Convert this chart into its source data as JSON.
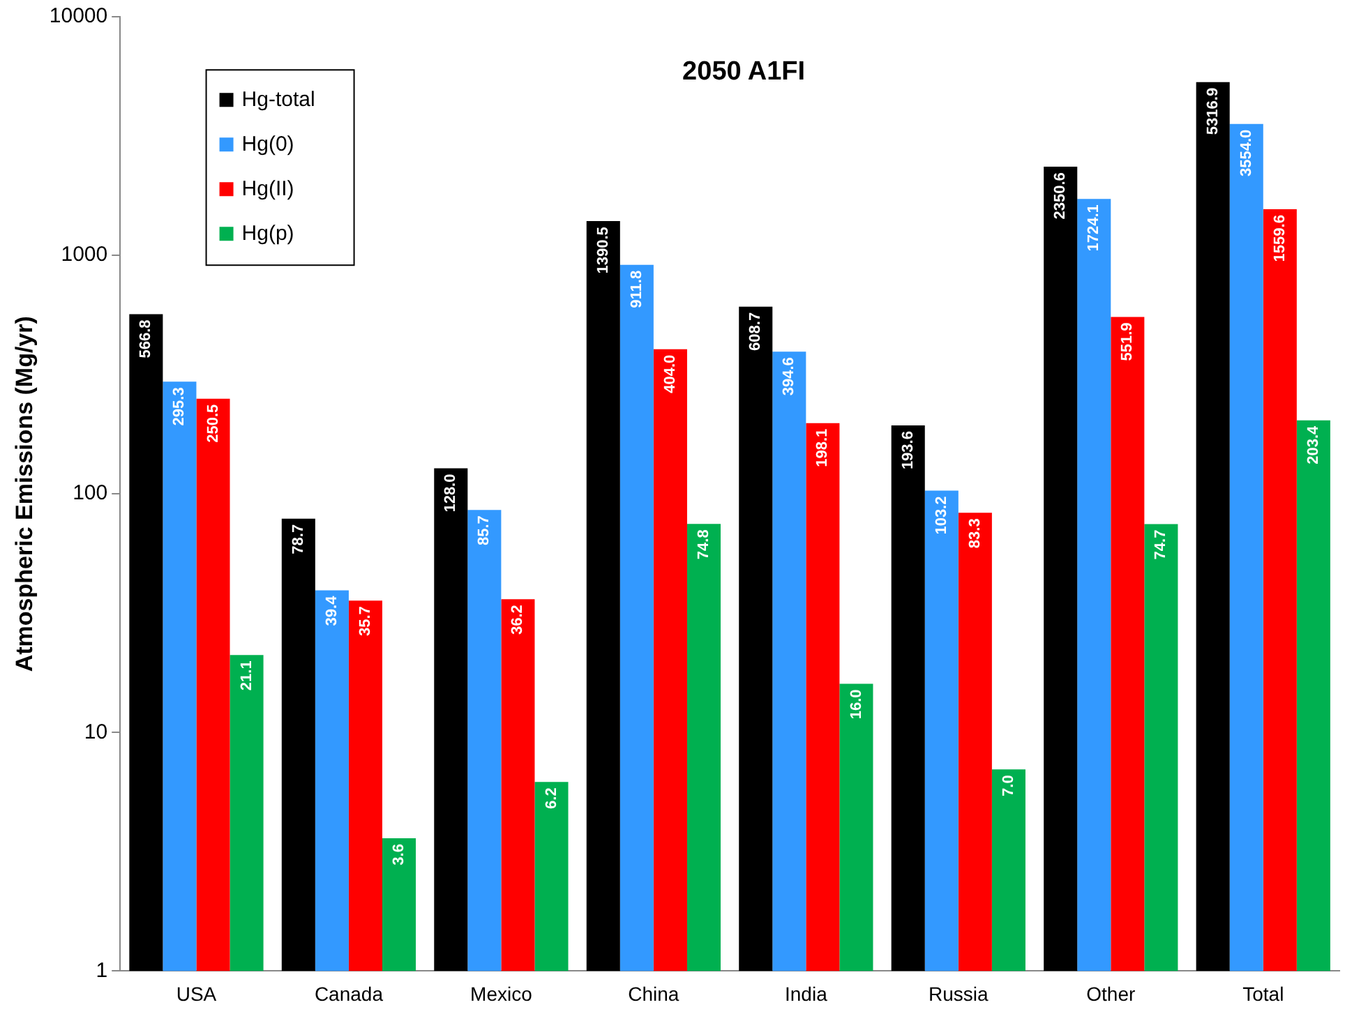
{
  "chart_data": {
    "type": "bar",
    "title": "2050 A1FI",
    "ylabel": "Atmospheric Emissions (Mg/yr)",
    "categories": [
      "USA",
      "Canada",
      "Mexico",
      "China",
      "India",
      "Russia",
      "Other",
      "Total"
    ],
    "series": [
      {
        "name": "Hg-total",
        "color": "#000000",
        "values": [
          566.8,
          78.7,
          128.0,
          1390.5,
          608.7,
          193.6,
          2350.6,
          5316.9
        ],
        "value_labels": [
          "566.8",
          "78.7",
          "128.0",
          "1390.5",
          "608.7",
          "193.6",
          "2350.6",
          "5316.9"
        ]
      },
      {
        "name": "Hg(0)",
        "color": "#3399ff",
        "values": [
          295.3,
          39.4,
          85.7,
          911.8,
          394.6,
          103.2,
          1724.1,
          3554.0
        ],
        "value_labels": [
          "295.3",
          "39.4",
          "85.7",
          "911.8",
          "394.6",
          "103.2",
          "1724.1",
          "3554.0"
        ]
      },
      {
        "name": "Hg(II)",
        "color": "#ff0000",
        "values": [
          250.5,
          35.7,
          36.2,
          404.0,
          198.1,
          83.3,
          551.9,
          1559.6
        ],
        "value_labels": [
          "250.5",
          "35.7",
          "36.2",
          "404.0",
          "198.1",
          "83.3",
          "551.9",
          "1559.6"
        ]
      },
      {
        "name": "Hg(p)",
        "color": "#00b050",
        "values": [
          21.1,
          3.6,
          6.2,
          74.8,
          16.0,
          7.0,
          74.7,
          203.4
        ],
        "value_labels": [
          "21.1",
          "3.6",
          "6.2",
          "74.8",
          "16.0",
          "7.0",
          "74.7",
          "203.4"
        ]
      }
    ],
    "log": "y",
    "ylim": [
      1,
      10000
    ],
    "yticks": [
      1,
      10,
      100,
      1000,
      10000
    ],
    "grid": false,
    "legend": "top left"
  }
}
